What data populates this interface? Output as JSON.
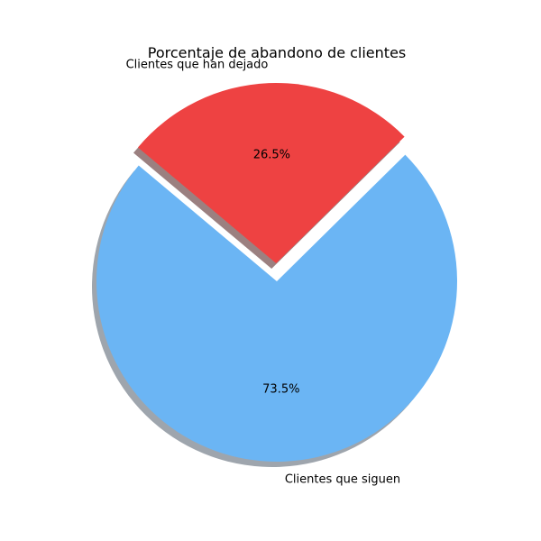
{
  "chart_data": {
    "type": "pie",
    "title": "Porcentaje de abandono de clientes",
    "start_angle": 140,
    "shadow": true,
    "slices": [
      {
        "name": "Clientes que siguen",
        "value": 73.5,
        "pct_label": "73.5%",
        "color": "#6bb5f4",
        "shadow_color": "#9ea5ad",
        "exploded": false
      },
      {
        "name": "Clientes que han dejado",
        "value": 26.5,
        "pct_label": "26.5%",
        "color": "#ee4242",
        "shadow_color": "#9b8080",
        "exploded": true
      }
    ]
  }
}
